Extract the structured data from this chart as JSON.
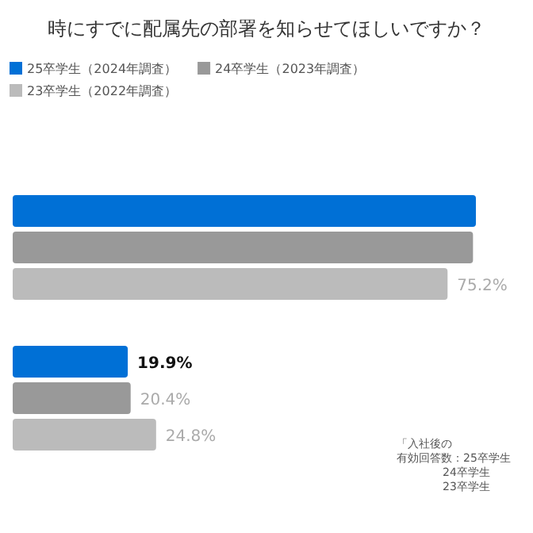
{
  "chart_data": {
    "type": "bar",
    "orientation": "horizontal",
    "title": "時にすでに配属先の部署を知らせてほしいですか？",
    "categories": [
      null,
      null
    ],
    "legend": "top",
    "series": [
      {
        "name": "25卒学生（2024年調査）",
        "color": "#0070d6",
        "values": [
          80.1,
          19.9
        ],
        "value_labels": [
          null,
          "19.9%"
        ]
      },
      {
        "name": "24卒学生（2023年調査）",
        "color": "#999999",
        "values": [
          79.6,
          20.4
        ],
        "value_labels": [
          null,
          "20.4%"
        ]
      },
      {
        "name": "23卒学生（2022年調査）",
        "color": "#bbbbbb",
        "values": [
          75.2,
          24.8
        ],
        "value_labels": [
          "75.2%",
          "24.8%"
        ]
      }
    ],
    "annotations": [
      "「入社後の",
      "有効回答数：25卒学生",
      "24卒学生",
      "23卒学生"
    ]
  }
}
